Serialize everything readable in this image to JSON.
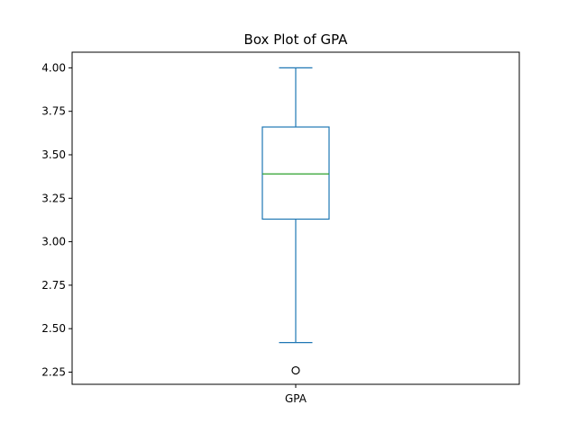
{
  "chart_data": {
    "type": "box",
    "title": "Box Plot of GPA",
    "xlabel": "",
    "ylabel": "",
    "categories": [
      "GPA"
    ],
    "ylim": [
      2.18,
      4.09
    ],
    "yticks": [
      2.25,
      2.5,
      2.75,
      3.0,
      3.25,
      3.5,
      3.75,
      4.0
    ],
    "ytick_labels": [
      "2.25",
      "2.50",
      "2.75",
      "3.00",
      "3.25",
      "3.50",
      "3.75",
      "4.00"
    ],
    "grid": false,
    "series": [
      {
        "whisker_low": 2.42,
        "q1": 3.13,
        "median": 3.39,
        "q3": 3.66,
        "whisker_high": 4.0,
        "outliers": [
          2.26
        ]
      }
    ],
    "colors": {
      "box": "#1f77b4",
      "median": "#2ca02c",
      "outlier": "#000000",
      "axes": "#000000"
    }
  }
}
